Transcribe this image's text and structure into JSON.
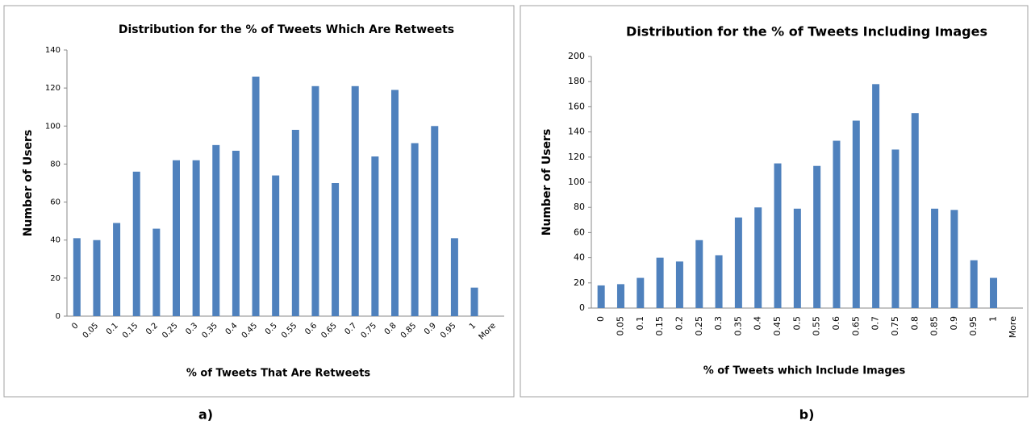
{
  "chart_data": [
    {
      "type": "bar",
      "title": "Distribution for the % of Tweets Which Are Retweets",
      "x_label": "% of Tweets That Are Retweets",
      "y_label": "Number of Users",
      "caption": "a)",
      "categories": [
        "0",
        "0.05",
        "0.1",
        "0.15",
        "0.2",
        "0.25",
        "0.3",
        "0.35",
        "0.4",
        "0.45",
        "0.5",
        "0.55",
        "0.6",
        "0.65",
        "0.7",
        "0.75",
        "0.8",
        "0.85",
        "0.9",
        "0.95",
        "1",
        "More"
      ],
      "values": [
        41,
        40,
        49,
        76,
        46,
        82,
        82,
        90,
        87,
        126,
        74,
        98,
        121,
        70,
        121,
        84,
        119,
        91,
        100,
        41,
        15,
        0
      ],
      "color": "#4f81bd",
      "ylim": [
        0,
        140
      ],
      "yticks": [
        0,
        20,
        40,
        60,
        80,
        100,
        120,
        140
      ]
    },
    {
      "type": "bar",
      "title": "Distribution for the % of Tweets Including Images",
      "x_label": "% of Tweets which Include Images",
      "y_label": "Number of Users",
      "caption": "b)",
      "categories": [
        "0",
        "0.05",
        "0.1",
        "0.15",
        "0.2",
        "0.25",
        "0.3",
        "0.35",
        "0.4",
        "0.45",
        "0.5",
        "0.55",
        "0.6",
        "0.65",
        "0.7",
        "0.75",
        "0.8",
        "0.85",
        "0.9",
        "0.95",
        "1",
        "More"
      ],
      "values": [
        18,
        19,
        24,
        40,
        37,
        54,
        42,
        72,
        80,
        115,
        79,
        113,
        133,
        149,
        178,
        126,
        155,
        79,
        78,
        38,
        24,
        0
      ],
      "color": "#4f81bd",
      "ylim": [
        0,
        200
      ],
      "yticks": [
        0,
        20,
        40,
        60,
        80,
        100,
        120,
        140,
        160,
        180,
        200
      ]
    }
  ]
}
